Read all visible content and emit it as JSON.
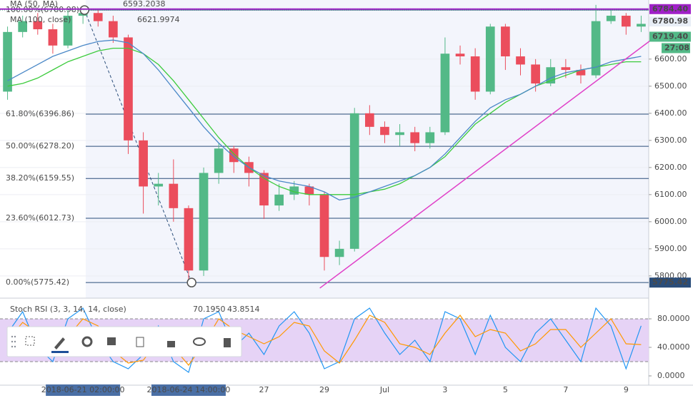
{
  "chart_data": [
    {
      "type": "candlestick",
      "categories": [
        null,
        null,
        null,
        null,
        null,
        "2018-06-21 02:00:00",
        null,
        null,
        null,
        null,
        null,
        null,
        "2018-06-24 14:00:00",
        null,
        null,
        null,
        null,
        "27",
        null,
        null,
        null,
        "29",
        null,
        null,
        null,
        "Jul",
        null,
        null,
        null,
        "3",
        null,
        null,
        null,
        "5",
        null,
        null,
        null,
        "7",
        null,
        null,
        null,
        "9",
        null
      ],
      "open": [
        6480,
        6700,
        6740,
        6710,
        6650,
        6760,
        6770,
        6740,
        6680,
        6300,
        6130,
        6140,
        6050,
        5820,
        6180,
        6270,
        6220,
        6180,
        6060,
        6100,
        6130,
        6100,
        5870,
        5900,
        6400,
        6350,
        6320,
        6330,
        6290,
        6330,
        6620,
        6610,
        6480,
        6720,
        6610,
        6580,
        6510,
        6570,
        6560,
        6540,
        6740,
        6760,
        6720
      ],
      "high": [
        6720,
        6760,
        6770,
        6730,
        6780,
        6790,
        6780,
        6760,
        6690,
        6330,
        6180,
        6230,
        6060,
        6200,
        6290,
        6280,
        6240,
        6190,
        6140,
        6150,
        6140,
        6110,
        5930,
        6420,
        6430,
        6370,
        6360,
        6350,
        6350,
        6680,
        6650,
        6640,
        6730,
        6730,
        6640,
        6600,
        6600,
        6600,
        6580,
        6800,
        6780,
        6770,
        6760
      ],
      "low": [
        6450,
        6680,
        6690,
        6620,
        6640,
        6730,
        6720,
        6660,
        6250,
        6030,
        6060,
        6000,
        5775.42,
        5800,
        6140,
        6180,
        6130,
        6010,
        6040,
        6080,
        6060,
        5820,
        5840,
        5890,
        6320,
        6290,
        6280,
        6260,
        6270,
        6320,
        6580,
        6450,
        6470,
        6560,
        6540,
        6480,
        6500,
        6530,
        6510,
        6530,
        6730,
        6690,
        6700
      ],
      "close": [
        6700,
        6740,
        6710,
        6650,
        6760,
        6770,
        6740,
        6680,
        6300,
        6130,
        6140,
        6050,
        5820,
        6180,
        6270,
        6220,
        6180,
        6060,
        6100,
        6130,
        6100,
        5870,
        5900,
        6400,
        6350,
        6320,
        6330,
        6290,
        6330,
        6620,
        6610,
        6480,
        6720,
        6610,
        6580,
        6510,
        6570,
        6560,
        6540,
        6740,
        6760,
        6720,
        6730
      ],
      "up_color": "#53b987",
      "down_color": "#eb4d5c",
      "lines": [
        {
          "name": "MA (50, MA)",
          "color": "#3ccb3c",
          "last_label": "6593.2038",
          "values": [
            6500,
            6510,
            6530,
            6560,
            6590,
            6610,
            6630,
            6640,
            6640,
            6620,
            6580,
            6520,
            6450,
            6380,
            6310,
            6250,
            6200,
            6160,
            6130,
            6110,
            6100,
            6100,
            6100,
            6100,
            6110,
            6120,
            6140,
            6170,
            6200,
            6240,
            6300,
            6360,
            6400,
            6440,
            6470,
            6500,
            6520,
            6540,
            6560,
            6570,
            6580,
            6590,
            6590
          ]
        },
        {
          "name": "MA (100, close)",
          "color": "#4a88c7",
          "last_label": "6621.9974",
          "values": [
            6520,
            6550,
            6580,
            6610,
            6630,
            6650,
            6665,
            6670,
            6660,
            6620,
            6560,
            6490,
            6420,
            6350,
            6290,
            6240,
            6200,
            6170,
            6150,
            6140,
            6130,
            6110,
            6080,
            6090,
            6110,
            6130,
            6150,
            6170,
            6200,
            6250,
            6310,
            6370,
            6420,
            6450,
            6470,
            6500,
            6530,
            6550,
            6560,
            6570,
            6590,
            6600,
            6610
          ]
        }
      ],
      "ylim": [
        5718,
        6818
      ],
      "yticks": [
        {
          "value": 6600,
          "label": "6600.00"
        },
        {
          "value": 6500,
          "label": "6500.00"
        },
        {
          "value": 6400,
          "label": "6400.00"
        },
        {
          "value": 6300,
          "label": "6300.00"
        },
        {
          "value": 6200,
          "label": "6200.00"
        },
        {
          "value": 6100,
          "label": "6100.00"
        },
        {
          "value": 6000,
          "label": "6000.00"
        },
        {
          "value": 5900,
          "label": "5900.00"
        },
        {
          "value": 5800,
          "label": "5800.00"
        }
      ],
      "fib_color": "#2a4d7a",
      "fib_levels": [
        {
          "value": 6780.98,
          "label": "100.00%(6780.98)"
        },
        {
          "value": 6396.86,
          "label": "61.80%(6396.86)"
        },
        {
          "value": 6278.2,
          "label": "50.00%(6278.20)"
        },
        {
          "value": 6159.55,
          "label": "38.20%(6159.55)"
        },
        {
          "value": 6012.73,
          "label": "23.60%(6012.73)"
        },
        {
          "value": 5775.42,
          "label": "0.00%(5775.42)"
        }
      ],
      "fib_anchors": [
        [
          5.1,
          6780.98
        ],
        [
          12.2,
          5775.42
        ]
      ],
      "trend_line": {
        "color": "#e040c8",
        "from": [
          20.7,
          5755
        ],
        "to": [
          42.6,
          6668
        ]
      },
      "price_badges": [
        {
          "value": 6784.4,
          "label": "6784.40",
          "color": "#a020c8"
        },
        {
          "value": 6780.98,
          "label": "6780.98",
          "color": "#e8eef6"
        },
        {
          "value": 6719.4,
          "label": "6719.40",
          "color": "#53b987"
        },
        {
          "value": 5775.42,
          "label": "5775.42",
          "color": "#2a4d7a"
        }
      ],
      "countdown": "27:08"
    },
    {
      "type": "line",
      "title": "Stoch RSI (3, 3, 14, 14, close)",
      "series": [
        {
          "name": "K",
          "color": "#2196f3",
          "last_label": "70.1950",
          "values": [
            60,
            90,
            40,
            20,
            80,
            95,
            50,
            20,
            10,
            30,
            70,
            20,
            5,
            80,
            90,
            40,
            60,
            30,
            70,
            90,
            60,
            10,
            20,
            80,
            95,
            60,
            30,
            50,
            20,
            90,
            80,
            30,
            85,
            40,
            20,
            60,
            80,
            50,
            20,
            95,
            70,
            10,
            70.195
          ]
        },
        {
          "name": "D",
          "color": "#ff9800",
          "last_label": "43.8514",
          "values": [
            50,
            75,
            60,
            35,
            55,
            80,
            70,
            35,
            18,
            22,
            50,
            40,
            15,
            45,
            80,
            65,
            55,
            45,
            55,
            75,
            70,
            35,
            18,
            50,
            85,
            75,
            45,
            40,
            30,
            60,
            85,
            55,
            65,
            60,
            35,
            45,
            65,
            65,
            40,
            60,
            80,
            45,
            43.8514
          ]
        }
      ],
      "band": [
        20,
        80
      ],
      "band_color": "#e6d3f6",
      "ylim": [
        -13,
        107
      ],
      "yticks": [
        {
          "value": 80,
          "label": "80.0000"
        },
        {
          "value": 40,
          "label": "40.0000"
        },
        {
          "value": 0,
          "label": "0.0000"
        }
      ]
    }
  ]
}
